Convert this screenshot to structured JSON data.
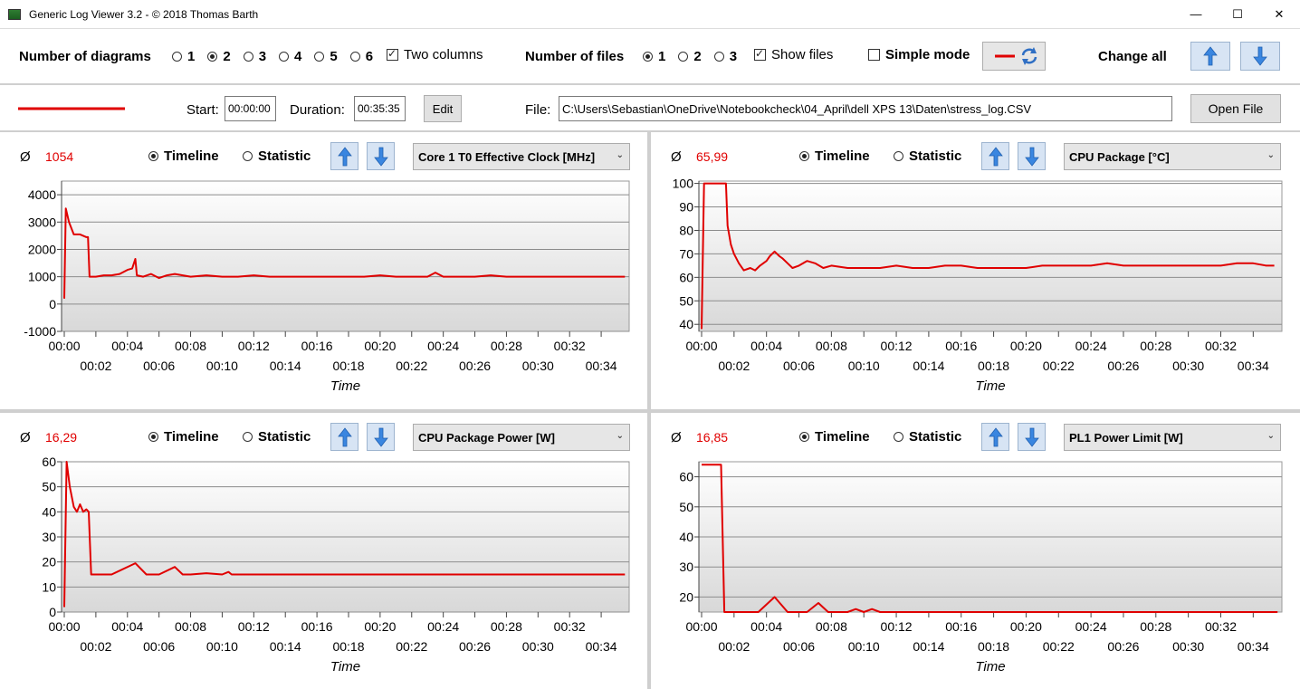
{
  "window": {
    "title": "Generic Log Viewer 3.2 - © 2018 Thomas Barth",
    "minimize": "—",
    "maximize": "☐",
    "close": "✕"
  },
  "toolbar": {
    "num_diagrams_label": "Number of diagrams",
    "diagram_options": [
      "1",
      "2",
      "3",
      "4",
      "5",
      "6"
    ],
    "diagrams_selected": "2",
    "two_columns_label": "Two columns",
    "two_columns_checked": true,
    "num_files_label": "Number of files",
    "file_options": [
      "1",
      "2",
      "3"
    ],
    "files_selected": "1",
    "show_files_label": "Show files",
    "show_files_checked": true,
    "simple_mode_label": "Simple mode",
    "simple_mode_checked": false,
    "change_all_label": "Change all",
    "line_color": "#e00000"
  },
  "file_bar": {
    "start_label": "Start:",
    "start_value": "00:00:00",
    "duration_label": "Duration:",
    "duration_value": "00:35:35",
    "edit_label": "Edit",
    "file_label": "File:",
    "file_path": "C:\\Users\\Sebastian\\OneDrive\\Notebookcheck\\04_April\\dell XPS 13\\Daten\\stress_log.CSV",
    "open_file_label": "Open File"
  },
  "panels": [
    {
      "avg_symbol": "Ø",
      "avg_value": "1054",
      "timeline_label": "Timeline",
      "statistic_label": "Statistic",
      "sensor": "Core 1 T0 Effective Clock [MHz]"
    },
    {
      "avg_symbol": "Ø",
      "avg_value": "65,99",
      "timeline_label": "Timeline",
      "statistic_label": "Statistic",
      "sensor": "CPU Package [°C]"
    },
    {
      "avg_symbol": "Ø",
      "avg_value": "16,29",
      "timeline_label": "Timeline",
      "statistic_label": "Statistic",
      "sensor": "CPU Package Power [W]"
    },
    {
      "avg_symbol": "Ø",
      "avg_value": "16,85",
      "timeline_label": "Timeline",
      "statistic_label": "Statistic",
      "sensor": "PL1 Power Limit [W]"
    }
  ],
  "chart_data": [
    {
      "type": "line",
      "xlabel": "Time",
      "ylim": [
        -1000,
        4500
      ],
      "yticks": [
        -1000,
        0,
        1000,
        2000,
        3000,
        4000
      ],
      "xticks_top": [
        "00:00",
        "00:04",
        "00:08",
        "00:12",
        "00:16",
        "00:20",
        "00:24",
        "00:28",
        "00:32"
      ],
      "xticks_bottom": [
        "00:02",
        "00:06",
        "00:10",
        "00:14",
        "00:18",
        "00:22",
        "00:26",
        "00:30",
        "00:34"
      ],
      "color": "#e00000",
      "x": [
        0,
        0.1,
        0.3,
        0.6,
        1.0,
        1.4,
        1.5,
        1.6,
        2.0,
        2.5,
        3.0,
        3.5,
        4.0,
        4.3,
        4.5,
        4.6,
        5.0,
        5.5,
        6.0,
        6.5,
        7.0,
        7.5,
        8.0,
        9.0,
        10.0,
        11.0,
        12.0,
        13.0,
        14.0,
        15.0,
        16.0,
        17.0,
        18.0,
        19.0,
        20.0,
        21.0,
        22.0,
        23.0,
        23.5,
        24.0,
        25.0,
        26.0,
        27.0,
        28.0,
        29.0,
        30.0,
        31.0,
        32.0,
        33.0,
        34.0,
        35.0,
        35.5
      ],
      "y": [
        200,
        3500,
        3000,
        2550,
        2550,
        2450,
        2450,
        1000,
        1000,
        1050,
        1050,
        1100,
        1250,
        1300,
        1650,
        1050,
        1000,
        1100,
        950,
        1050,
        1100,
        1050,
        1000,
        1050,
        1000,
        1000,
        1050,
        1000,
        1000,
        1000,
        1000,
        1000,
        1000,
        1000,
        1050,
        1000,
        1000,
        1000,
        1150,
        1000,
        1000,
        1000,
        1050,
        1000,
        1000,
        1000,
        1000,
        1000,
        1000,
        1000,
        1000,
        1000
      ]
    },
    {
      "type": "line",
      "xlabel": "Time",
      "ylim": [
        37,
        101
      ],
      "yticks": [
        40,
        50,
        60,
        70,
        80,
        90,
        100
      ],
      "xticks_top": [
        "00:00",
        "00:04",
        "00:08",
        "00:12",
        "00:16",
        "00:20",
        "00:24",
        "00:28",
        "00:32"
      ],
      "xticks_bottom": [
        "00:02",
        "00:06",
        "00:10",
        "00:14",
        "00:18",
        "00:22",
        "00:26",
        "00:30",
        "00:34"
      ],
      "color": "#e00000",
      "x": [
        0,
        0.15,
        0.3,
        1.5,
        1.6,
        1.8,
        2.0,
        2.3,
        2.6,
        3.0,
        3.3,
        3.6,
        4.0,
        4.2,
        4.5,
        4.8,
        5.0,
        5.3,
        5.6,
        6.0,
        6.5,
        7.0,
        7.5,
        8.0,
        9.0,
        10.0,
        11.0,
        12.0,
        13.0,
        14.0,
        15.0,
        16.0,
        17.0,
        18.0,
        19.0,
        20.0,
        21.0,
        22.0,
        23.0,
        24.0,
        25.0,
        26.0,
        27.0,
        28.0,
        29.0,
        30.0,
        31.0,
        32.0,
        33.0,
        34.0,
        34.8,
        35.3
      ],
      "y": [
        38,
        100,
        100,
        100,
        82,
        74,
        70,
        66,
        63,
        64,
        63,
        65,
        67,
        69,
        71,
        69,
        68,
        66,
        64,
        65,
        67,
        66,
        64,
        65,
        64,
        64,
        64,
        65,
        64,
        64,
        65,
        65,
        64,
        64,
        64,
        64,
        65,
        65,
        65,
        65,
        66,
        65,
        65,
        65,
        65,
        65,
        65,
        65,
        66,
        66,
        65,
        65
      ]
    },
    {
      "type": "line",
      "xlabel": "Time",
      "ylim": [
        0,
        60
      ],
      "yticks": [
        0,
        10,
        20,
        30,
        40,
        50,
        60
      ],
      "xticks_top": [
        "00:00",
        "00:04",
        "00:08",
        "00:12",
        "00:16",
        "00:20",
        "00:24",
        "00:28",
        "00:32"
      ],
      "xticks_bottom": [
        "00:02",
        "00:06",
        "00:10",
        "00:14",
        "00:18",
        "00:22",
        "00:26",
        "00:30",
        "00:34"
      ],
      "color": "#e00000",
      "x": [
        0,
        0.15,
        0.35,
        0.6,
        0.8,
        1.0,
        1.2,
        1.4,
        1.55,
        1.7,
        2.0,
        3.0,
        4.5,
        5.2,
        6.0,
        7.0,
        7.5,
        8.0,
        9.0,
        10.0,
        10.4,
        10.6,
        11.0,
        12.0,
        14.0,
        16.0,
        18.0,
        20.0,
        22.0,
        24.0,
        26.0,
        28.0,
        30.0,
        32.0,
        34.0,
        35.5
      ],
      "y": [
        2,
        60,
        50,
        42,
        40,
        43,
        40,
        41,
        40,
        15,
        15,
        15,
        19.5,
        15,
        15,
        18,
        15,
        15,
        15.5,
        15,
        16,
        15,
        15,
        15,
        15,
        15,
        15,
        15,
        15,
        15,
        15,
        15,
        15,
        15,
        15,
        15
      ]
    },
    {
      "type": "line",
      "xlabel": "Time",
      "ylim": [
        15,
        65
      ],
      "yticks": [
        20,
        30,
        40,
        50,
        60
      ],
      "xticks_top": [
        "00:00",
        "00:04",
        "00:08",
        "00:12",
        "00:16",
        "00:20",
        "00:24",
        "00:28",
        "00:32"
      ],
      "xticks_bottom": [
        "00:02",
        "00:06",
        "00:10",
        "00:14",
        "00:18",
        "00:22",
        "00:26",
        "00:30",
        "00:34"
      ],
      "color": "#e00000",
      "x": [
        0,
        1.2,
        1.4,
        3.5,
        4.5,
        5.3,
        6.5,
        7.2,
        7.8,
        9.0,
        9.5,
        10.0,
        10.5,
        11.0,
        12.0,
        14.0,
        16.0,
        18.0,
        20.0,
        22.0,
        24.0,
        26.0,
        28.0,
        30.0,
        32.0,
        34.0,
        35.5
      ],
      "y": [
        64,
        64,
        15,
        15,
        20,
        15,
        15,
        18,
        15,
        15,
        16,
        15,
        16,
        15,
        15,
        15,
        15,
        15,
        15,
        15,
        15,
        15,
        15,
        15,
        15,
        15,
        15
      ]
    }
  ]
}
